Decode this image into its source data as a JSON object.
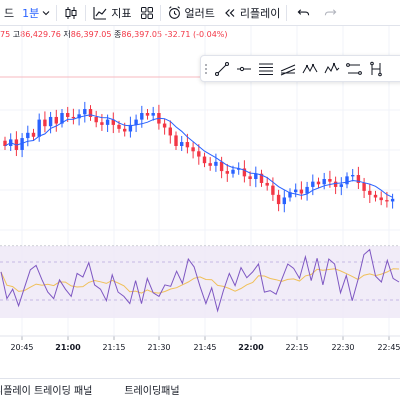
{
  "toolbar": {
    "symbol_tail": "드",
    "interval": "1분",
    "indicators_label": "지표",
    "alerts_label": "얼러트",
    "replay_label": "리플레이",
    "undo_icon": "undo-icon",
    "redo_icon": "redo-icon"
  },
  "ohlc": {
    "open_tail": "75",
    "high_key": "고",
    "high": "86,429.76",
    "low_key": "저",
    "low": "86,397.05",
    "close_key": "종",
    "close": "86,397.05",
    "change": "-32.71 (-0.04%)"
  },
  "drawing_tools": [
    "trend-line-icon",
    "horizontal-ray-icon",
    "fib-retracement-icon",
    "parallel-channel-icon",
    "xabcd-pattern-icon",
    "elliott-wave-icon",
    "date-range-icon",
    "price-range-icon"
  ],
  "time_axis": {
    "labels": [
      "20:45",
      "21:00",
      "21:15",
      "21:30",
      "21:45",
      "22:00",
      "22:15",
      "22:30",
      "22:45"
    ],
    "bold": [
      false,
      true,
      false,
      false,
      false,
      true,
      false,
      false,
      false
    ]
  },
  "bottom_panel": {
    "tabs": [
      "리플레이 트레이딩 패널",
      "트레이딩패널"
    ]
  },
  "colors": {
    "up": "#2962ff",
    "down": "#f23645",
    "ma_line": "#2962ff",
    "osc_line": "#7e57c2",
    "signal_line": "#f0c05a",
    "osc_band": "#ede7f6",
    "grid": "#f0f3fa"
  },
  "chart_data": {
    "type": "candlestick",
    "series_count": 1,
    "candles": [
      [
        0.54,
        0.5
      ],
      [
        0.5,
        0.55
      ],
      [
        0.55,
        0.47
      ],
      [
        0.47,
        0.56
      ],
      [
        0.56,
        0.6
      ],
      [
        0.6,
        0.57
      ],
      [
        0.57,
        0.7
      ],
      [
        0.7,
        0.65
      ],
      [
        0.65,
        0.72
      ],
      [
        0.72,
        0.67
      ],
      [
        0.67,
        0.75
      ],
      [
        0.75,
        0.72
      ],
      [
        0.72,
        0.71
      ],
      [
        0.71,
        0.74
      ],
      [
        0.74,
        0.78
      ],
      [
        0.78,
        0.72
      ],
      [
        0.72,
        0.68
      ],
      [
        0.68,
        0.66
      ],
      [
        0.66,
        0.7
      ],
      [
        0.7,
        0.66
      ],
      [
        0.66,
        0.63
      ],
      [
        0.63,
        0.61
      ],
      [
        0.61,
        0.66
      ],
      [
        0.66,
        0.7
      ],
      [
        0.7,
        0.75
      ],
      [
        0.75,
        0.73
      ],
      [
        0.73,
        0.75
      ],
      [
        0.75,
        0.67
      ],
      [
        0.67,
        0.64
      ],
      [
        0.64,
        0.58
      ],
      [
        0.58,
        0.5
      ],
      [
        0.5,
        0.53
      ],
      [
        0.53,
        0.49
      ],
      [
        0.49,
        0.46
      ],
      [
        0.46,
        0.42
      ],
      [
        0.42,
        0.37
      ],
      [
        0.37,
        0.35
      ],
      [
        0.35,
        0.38
      ],
      [
        0.38,
        0.31
      ],
      [
        0.31,
        0.29
      ],
      [
        0.29,
        0.32
      ],
      [
        0.32,
        0.33
      ],
      [
        0.33,
        0.27
      ],
      [
        0.27,
        0.25
      ],
      [
        0.25,
        0.29
      ],
      [
        0.29,
        0.22
      ],
      [
        0.22,
        0.2
      ],
      [
        0.2,
        0.13
      ],
      [
        0.13,
        0.06
      ],
      [
        0.06,
        0.11
      ],
      [
        0.11,
        0.15
      ],
      [
        0.15,
        0.17
      ],
      [
        0.17,
        0.14
      ],
      [
        0.14,
        0.19
      ],
      [
        0.19,
        0.23
      ],
      [
        0.23,
        0.21
      ],
      [
        0.21,
        0.25
      ],
      [
        0.25,
        0.23
      ],
      [
        0.23,
        0.19
      ],
      [
        0.19,
        0.21
      ],
      [
        0.21,
        0.27
      ],
      [
        0.27,
        0.28
      ],
      [
        0.28,
        0.22
      ],
      [
        0.22,
        0.16
      ],
      [
        0.16,
        0.13
      ],
      [
        0.13,
        0.11
      ],
      [
        0.11,
        0.09
      ],
      [
        0.09,
        0.08
      ],
      [
        0.08,
        0.1
      ]
    ],
    "oscillator": [
      0.64,
      0.27,
      0.4,
      0.17,
      0.42,
      0.67,
      0.73,
      0.53,
      0.36,
      0.27,
      0.53,
      0.4,
      0.3,
      0.62,
      0.57,
      0.77,
      0.46,
      0.4,
      0.24,
      0.6,
      0.36,
      0.3,
      0.2,
      0.52,
      0.2,
      0.55,
      0.35,
      0.3,
      0.46,
      0.44,
      0.65,
      0.48,
      0.82,
      0.71,
      0.44,
      0.2,
      0.42,
      0.1,
      0.38,
      0.62,
      0.45,
      0.7,
      0.56,
      0.64,
      0.75,
      0.36,
      0.38,
      0.33,
      0.54,
      0.75,
      0.69,
      0.55,
      0.85,
      0.52,
      0.83,
      0.46,
      0.82,
      0.75,
      0.35,
      0.59,
      0.24,
      0.53,
      0.88,
      0.95,
      0.58,
      0.5,
      0.8,
      0.55,
      0.5
    ]
  }
}
